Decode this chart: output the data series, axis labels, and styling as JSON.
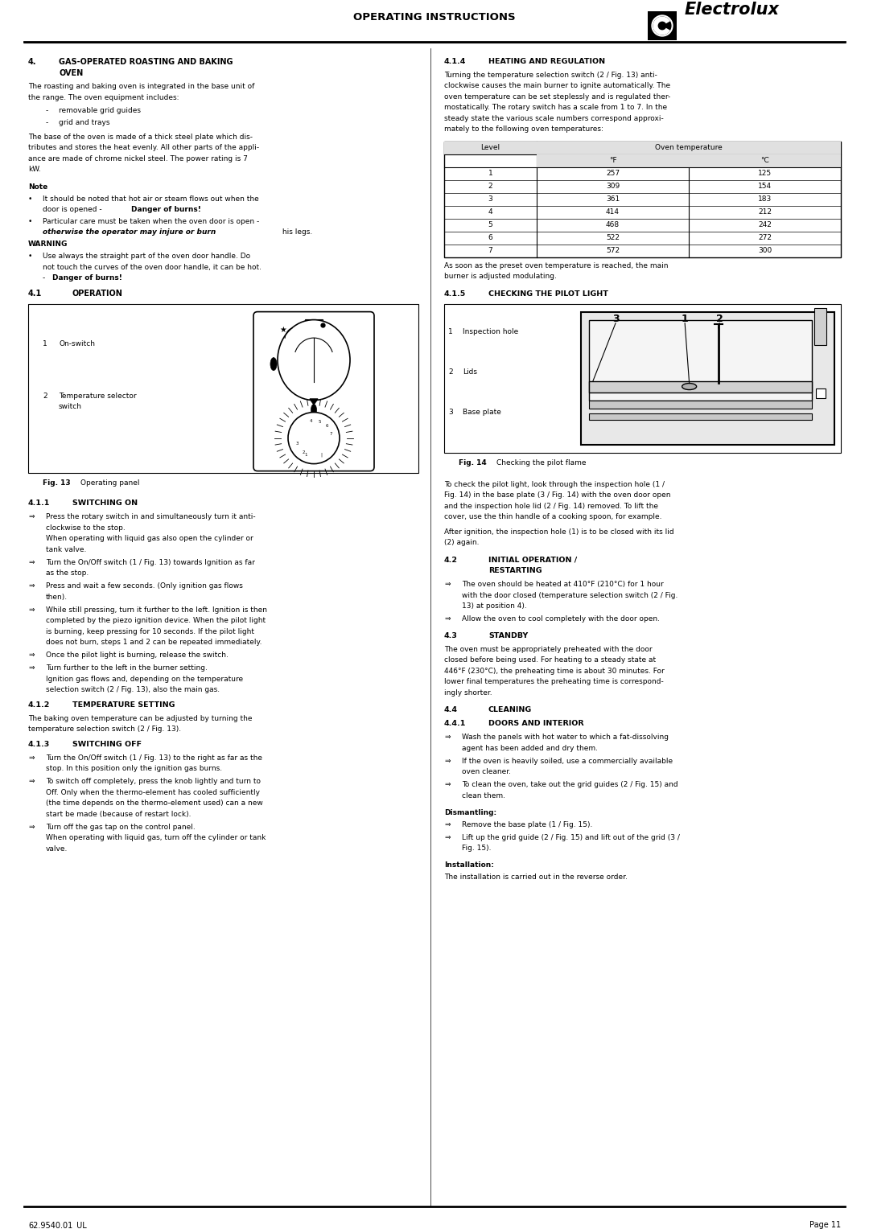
{
  "page_width": 10.8,
  "page_height": 15.28,
  "bg_color": "#ffffff",
  "header_text": "OPERATING INSTRUCTIONS",
  "brand": "Electrolux",
  "footer_left": "62.9540.01_UL",
  "footer_right": "Page 11",
  "table_data": [
    [
      1,
      257,
      125
    ],
    [
      2,
      309,
      154
    ],
    [
      3,
      361,
      183
    ],
    [
      4,
      414,
      212
    ],
    [
      5,
      468,
      242
    ],
    [
      6,
      522,
      272
    ],
    [
      7,
      572,
      300
    ]
  ]
}
